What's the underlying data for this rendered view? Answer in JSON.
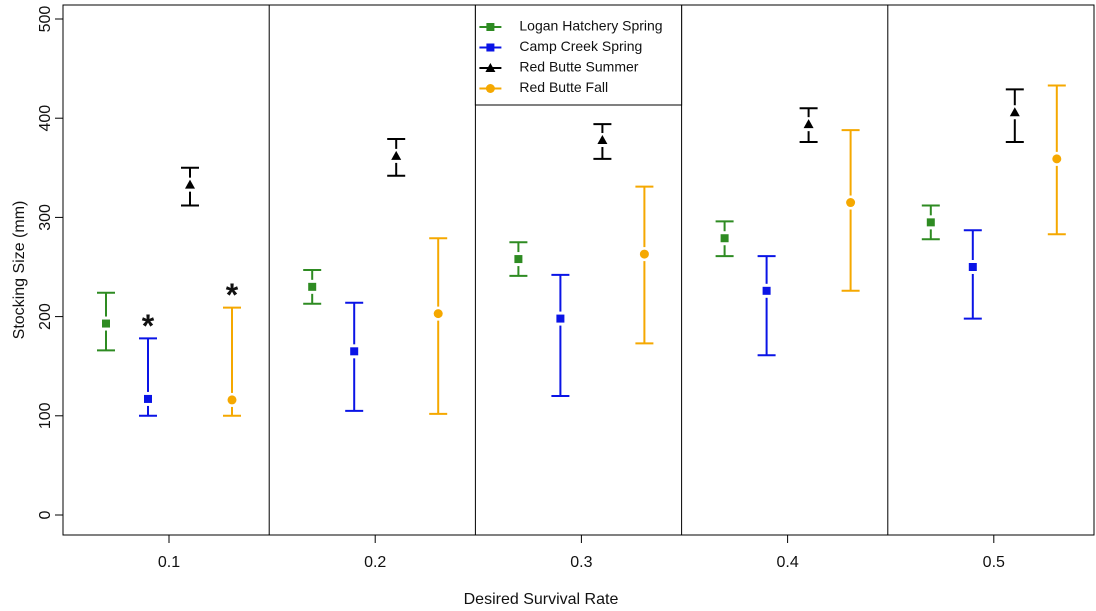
{
  "chart_data": {
    "type": "errorbar",
    "x_label": "Desired Survival Rate",
    "y_label": "Stocking Size (mm)",
    "categories": [
      "0.1",
      "0.2",
      "0.3",
      "0.4",
      "0.5"
    ],
    "ylim": [
      0,
      500
    ],
    "yticks": [
      0,
      100,
      200,
      300,
      400,
      500
    ],
    "legend": "top",
    "series": [
      {
        "name": "Logan Hatchery Spring",
        "color": "#2e8b22",
        "marker": "square",
        "values": [
          193,
          230,
          258,
          279,
          295
        ],
        "lower": [
          166,
          213,
          241,
          261,
          278
        ],
        "upper": [
          224,
          247,
          275,
          296,
          312
        ]
      },
      {
        "name": "Camp Creek Spring",
        "color": "#0a14e6",
        "marker": "square",
        "values": [
          117,
          165,
          198,
          226,
          250
        ],
        "lower": [
          100,
          105,
          120,
          161,
          198
        ],
        "upper": [
          178,
          214,
          242,
          261,
          287
        ]
      },
      {
        "name": "Red Butte Summer",
        "color": "#000000",
        "marker": "triangle",
        "values": [
          333,
          362,
          378,
          394,
          406
        ],
        "lower": [
          312,
          342,
          359,
          376,
          376
        ],
        "upper": [
          350,
          379,
          394,
          410,
          429
        ]
      },
      {
        "name": "Red Butte Fall",
        "color": "#f5a800",
        "marker": "circle",
        "values": [
          116,
          203,
          263,
          315,
          359
        ],
        "lower": [
          100,
          102,
          173,
          226,
          283
        ],
        "upper": [
          209,
          279,
          331,
          388,
          433
        ]
      }
    ],
    "annotations": [
      {
        "text": "*",
        "series": 1,
        "category": 0
      },
      {
        "text": "*",
        "series": 3,
        "category": 0
      }
    ]
  }
}
